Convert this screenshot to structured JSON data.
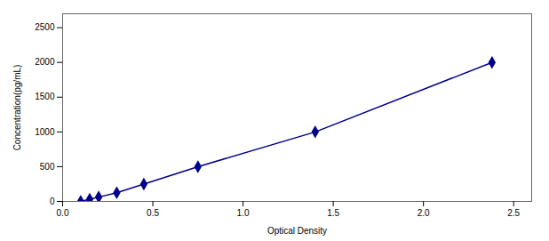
{
  "chart_data": {
    "type": "line",
    "xlabel": "Optical Density",
    "ylabel": "Concentration(pg/mL)",
    "x": [
      0.1,
      0.15,
      0.2,
      0.3,
      0.45,
      0.75,
      1.4,
      2.38
    ],
    "values": [
      0,
      31.25,
      62.5,
      125,
      250,
      500,
      1000,
      2000
    ],
    "color": "#00008B",
    "marker": "diamond",
    "line_style": "solid",
    "xlim": [
      0,
      2.6
    ],
    "ylim": [
      0,
      2700
    ],
    "xticks": [
      {
        "value": 0,
        "label": "0.0"
      },
      {
        "value": 0.5,
        "label": "0.5"
      },
      {
        "value": 1,
        "label": "1.0"
      },
      {
        "value": 1.5,
        "label": "1.5"
      },
      {
        "value": 2,
        "label": "2.0"
      },
      {
        "value": 2.5,
        "label": "2.5"
      }
    ],
    "yticks": [
      0,
      500,
      1000,
      1500,
      2000,
      2500
    ]
  }
}
